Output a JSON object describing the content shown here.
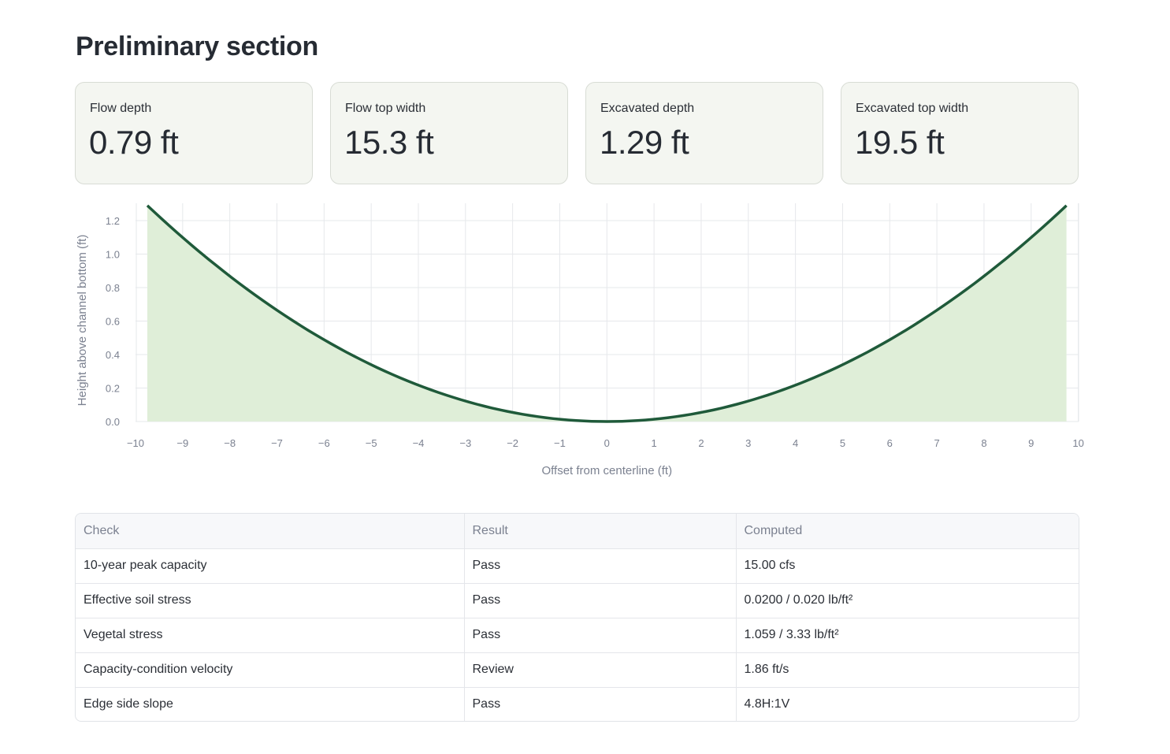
{
  "page": {
    "title": "Preliminary section"
  },
  "metrics": [
    {
      "label": "Flow depth",
      "value": "0.79 ft"
    },
    {
      "label": "Flow top width",
      "value": "15.3 ft"
    },
    {
      "label": "Excavated depth",
      "value": "1.29 ft"
    },
    {
      "label": "Excavated top width",
      "value": "19.5 ft"
    }
  ],
  "chart_data": {
    "type": "area",
    "xlabel": "Offset from centerline (ft)",
    "ylabel": "Height above channel bottom (ft)",
    "xlim": [
      -10,
      10
    ],
    "ylim": [
      0,
      1.29
    ],
    "x_ticks": [
      "−10",
      "−9",
      "−8",
      "−7",
      "−6",
      "−5",
      "−4",
      "−3",
      "−2",
      "−1",
      "0",
      "1",
      "2",
      "3",
      "4",
      "5",
      "6",
      "7",
      "8",
      "9",
      "10"
    ],
    "y_ticks": [
      "0.0",
      "0.2",
      "0.4",
      "0.6",
      "0.8",
      "1.0",
      "1.2"
    ],
    "x": [
      -9.75,
      -9,
      -8,
      -7,
      -6,
      -5,
      -4,
      -3,
      -2,
      -1,
      0,
      1,
      2,
      3,
      4,
      5,
      6,
      7,
      8,
      9,
      9.75
    ],
    "y": [
      1.29,
      1.1,
      0.87,
      0.67,
      0.49,
      0.34,
      0.22,
      0.12,
      0.05,
      0.01,
      0,
      0.01,
      0.05,
      0.12,
      0.22,
      0.34,
      0.49,
      0.67,
      0.87,
      1.1,
      1.29
    ],
    "grid": true,
    "line_color": "#1f5a3a",
    "fill_color": "#dfeed8"
  },
  "table": {
    "headers": [
      "Check",
      "Result",
      "Computed"
    ],
    "rows": [
      [
        "10-year peak capacity",
        "Pass",
        "15.00 cfs"
      ],
      [
        "Effective soil stress",
        "Pass",
        "0.0200 / 0.020 lb/ft²"
      ],
      [
        "Vegetal stress",
        "Pass",
        "1.059 / 3.33 lb/ft²"
      ],
      [
        "Capacity-condition velocity",
        "Review",
        "1.86 ft/s"
      ],
      [
        "Edge side slope",
        "Pass",
        "4.8H:1V"
      ]
    ]
  }
}
